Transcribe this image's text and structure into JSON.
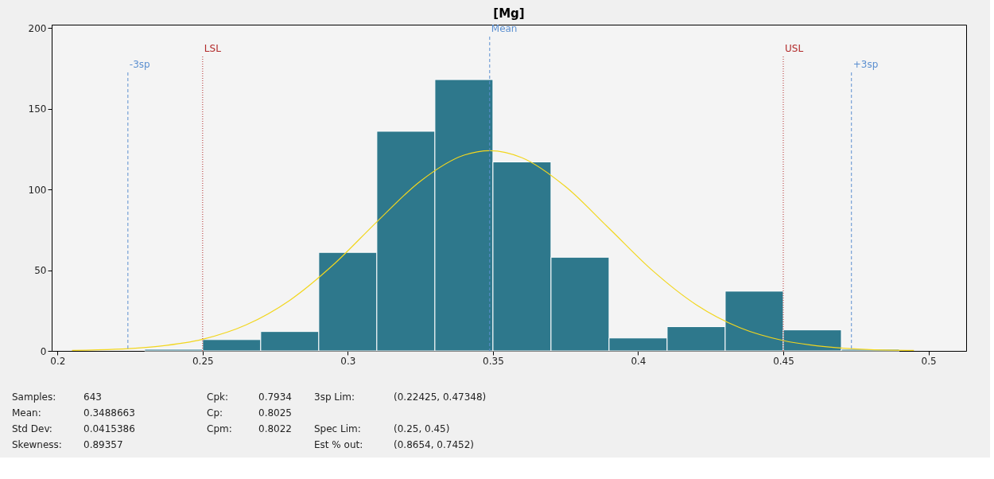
{
  "chart_data": {
    "type": "histogram",
    "title": "[Mg]",
    "bins": [
      0.23,
      0.25,
      0.27,
      0.29,
      0.31,
      0.33,
      0.35,
      0.37,
      0.39,
      0.41,
      0.43,
      0.45,
      0.47,
      0.49
    ],
    "series": [
      {
        "color": "#2e788c",
        "values": [
          1,
          7,
          12,
          61,
          136,
          168,
          117,
          58,
          8,
          15,
          37,
          13,
          1
        ]
      },
      {
        "type": "line",
        "color": "#f2d61e",
        "x": [
          0.205,
          0.22,
          0.235,
          0.25,
          0.265,
          0.28,
          0.295,
          0.31,
          0.325,
          0.34,
          0.349,
          0.36,
          0.375,
          0.39,
          0.405,
          0.42,
          0.435,
          0.45,
          0.465,
          0.48,
          0.495
        ],
        "values": [
          0.3,
          1.0,
          2.9,
          7.2,
          16.1,
          31.3,
          53.3,
          79.9,
          105.1,
          121.2,
          124,
          119.6,
          101.7,
          75.9,
          49.7,
          28.6,
          14.4,
          6.4,
          2.5,
          0.8,
          0.3
        ]
      }
    ],
    "xlim": [
      0.198,
      0.513
    ],
    "xticks": [
      0.2,
      0.25,
      0.3,
      0.35,
      0.4,
      0.45,
      0.5
    ],
    "ylim": [
      0,
      202
    ],
    "yticks": [
      0,
      50,
      100,
      150,
      200
    ],
    "grid": false,
    "ref_lines": [
      {
        "axis": "x",
        "value": 0.22425,
        "label": "-3sp",
        "color": "#5b8fd0",
        "line_style": "dashed"
      },
      {
        "axis": "x",
        "value": 0.25,
        "label": "LSL",
        "color": "#b22a2a",
        "line_style": "dotted"
      },
      {
        "axis": "x",
        "value": 0.3488663,
        "label": "Mean",
        "color": "#5b8fd0",
        "line_style": "dashed"
      },
      {
        "axis": "x",
        "value": 0.45,
        "label": "USL",
        "color": "#b22a2a",
        "line_style": "dotted"
      },
      {
        "axis": "x",
        "value": 0.47348,
        "label": "+3sp",
        "color": "#5b8fd0",
        "line_style": "dashed"
      }
    ],
    "annotations": [
      "Samples:",
      "Mean:",
      "Std Dev:",
      "Skewness:",
      "643",
      "0.3488663",
      "0.0415386",
      "0.89357",
      "Cpk:",
      "Cp:",
      "Cpm:",
      "0.7934",
      "0.8025",
      "0.8022",
      "3sp Lim:",
      "Spec Lim:",
      "Est % out:",
      "(0.22425, 0.47348)",
      "(0.25, 0.45)",
      "(0.8654, 0.7452)"
    ]
  }
}
